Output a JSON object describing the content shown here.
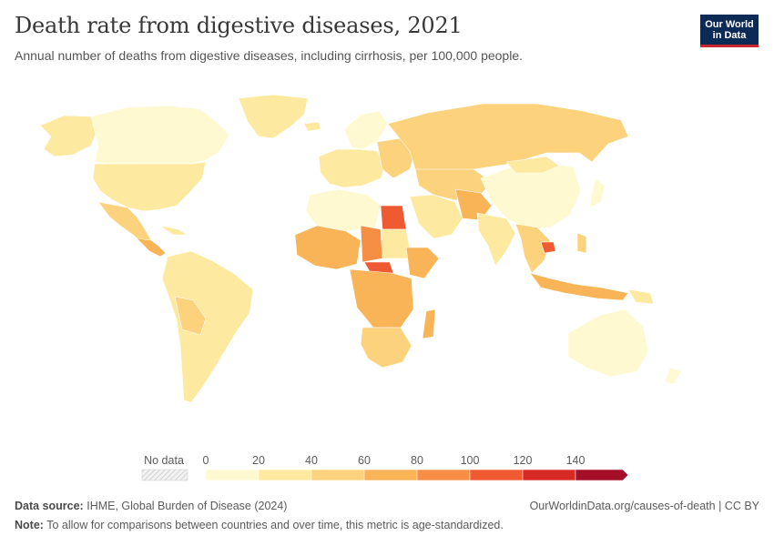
{
  "title": "Death rate from digestive diseases, 2021",
  "subtitle": "Annual number of deaths from digestive diseases, including cirrhosis, per 100,000 people.",
  "logo": {
    "line1": "Our World",
    "line2": "in Data"
  },
  "legend": {
    "no_data_label": "No data",
    "ticks": [
      "0",
      "20",
      "40",
      "60",
      "80",
      "100",
      "120",
      "140"
    ],
    "colors": [
      "#fef9d0",
      "#fde9a0",
      "#fcd27d",
      "#f9b457",
      "#f68f45",
      "#ef5a33",
      "#d82a25",
      "#a50f2a"
    ]
  },
  "footer": {
    "source_label": "Data source:",
    "source_text": "IHME, Global Burden of Disease (2024)",
    "note_label": "Note:",
    "note_text": "To allow for comparisons between countries and over time, this metric is age-standardized.",
    "url": "OurWorldinData.org/causes-of-death | CC BY"
  },
  "map_colors": {
    "border": "#ffffff",
    "no_data": "#e6e6e6"
  }
}
